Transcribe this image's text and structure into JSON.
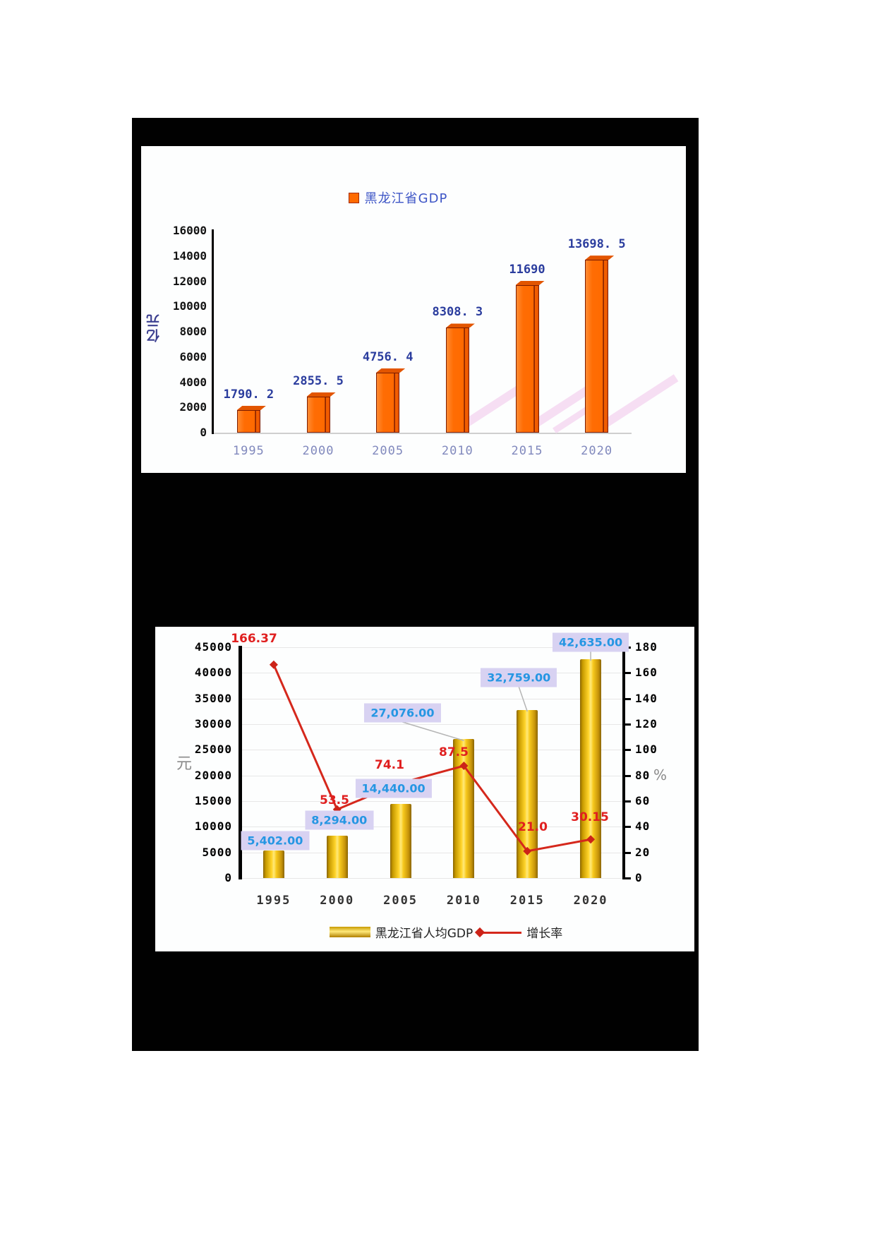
{
  "page": {
    "background": "#ffffff",
    "panel_background": "#010101",
    "chart_background": "#fdfefe"
  },
  "chart_data": [
    {
      "type": "bar",
      "legend_label": "黑龙江省GDP",
      "legend_position": "top",
      "ylabel": "亿元",
      "categories": [
        "1995",
        "2000",
        "2005",
        "2010",
        "2015",
        "2020"
      ],
      "values": [
        1790.2,
        2855.5,
        4756.4,
        8308.3,
        11690,
        13698.5
      ],
      "value_labels": [
        "1790. 2",
        "2855. 5",
        "4756. 4",
        "8308. 3",
        "11690",
        "13698. 5"
      ],
      "ylim": [
        0,
        16000
      ],
      "y_ticks": [
        16000,
        14000,
        12000,
        10000,
        8000,
        6000,
        4000,
        2000,
        0
      ],
      "grid": false,
      "bar_color": "#ff6a00",
      "bar_border_color": "#7c1c00",
      "value_label_color": "#2b3d9e",
      "year_label_color": "#8189bd",
      "legend_text_color": "#3d55c6",
      "floor_shadow_color": "#f6def3"
    },
    {
      "type": "combo",
      "categories": [
        "1995",
        "2000",
        "2005",
        "2010",
        "2015",
        "2020"
      ],
      "series": [
        {
          "name": "黑龙江省人均GDP",
          "type": "bar",
          "axis": "left",
          "values": [
            5402,
            8294,
            14440,
            27076,
            32759,
            42635
          ],
          "value_labels": [
            "5,402.00",
            "8,294.00",
            "14,440.00",
            "27,076.00",
            "32,759.00",
            "42,635.00"
          ],
          "color": "#f0c419",
          "label_box_color": "#d8d2f2",
          "label_text_color": "#2596e3"
        },
        {
          "name": "增长率",
          "type": "line",
          "axis": "right",
          "values": [
            166.37,
            53.5,
            74.1,
            87.5,
            21.0,
            30.15
          ],
          "value_labels": [
            "166.37",
            "53.5",
            "74.1",
            "87.5",
            "21.0",
            "30.15"
          ],
          "color": "#d5281c",
          "marker": "diamond",
          "label_text_color": "#e01f1f"
        }
      ],
      "left_axis": {
        "title": "元",
        "min": 0,
        "max": 45000,
        "step": 5000,
        "ticks": [
          45000,
          40000,
          35000,
          30000,
          25000,
          20000,
          15000,
          10000,
          5000,
          0
        ]
      },
      "right_axis": {
        "title": "%",
        "min": 0,
        "max": 180,
        "step": 20,
        "ticks": [
          180,
          160,
          140,
          120,
          100,
          80,
          60,
          40,
          20,
          0
        ]
      },
      "grid": true,
      "gridline_color": "#e7e7e7",
      "legend_position": "bottom"
    }
  ]
}
